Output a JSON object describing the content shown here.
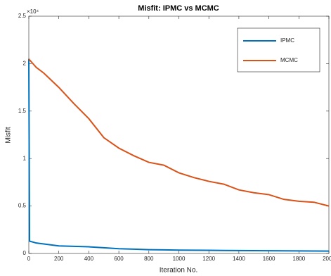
{
  "chart_data": {
    "type": "line",
    "title": "Misfit:  IPMC vs MCMC",
    "x_label": "Iteration No.",
    "y_label": "Misfit",
    "y_exponent_label": "×10⁴",
    "x": [
      0,
      5,
      50,
      100,
      200,
      300,
      400,
      500,
      600,
      700,
      800,
      900,
      1000,
      1100,
      1200,
      1300,
      1400,
      1500,
      1600,
      1700,
      1800,
      1900,
      2000
    ],
    "series": [
      {
        "name": "IPMC",
        "color": "#0072bd",
        "values": [
          2.05,
          0.13,
          0.11,
          0.1,
          0.08,
          0.075,
          0.07,
          0.06,
          0.05,
          0.045,
          0.04,
          0.038,
          0.035,
          0.034,
          0.033,
          0.032,
          0.031,
          0.03,
          0.029,
          0.028,
          0.027,
          0.026,
          0.025
        ]
      },
      {
        "name": "MCMC",
        "color": "#d95319",
        "values": [
          2.05,
          2.04,
          1.96,
          1.9,
          1.75,
          1.58,
          1.42,
          1.22,
          1.11,
          1.03,
          0.96,
          0.93,
          0.85,
          0.8,
          0.76,
          0.73,
          0.67,
          0.64,
          0.62,
          0.57,
          0.55,
          0.54,
          0.5
        ]
      }
    ],
    "xlim": [
      0,
      2000
    ],
    "xticks": [
      0,
      200,
      400,
      600,
      800,
      1000,
      1200,
      1400,
      1600,
      1800,
      2000
    ],
    "ylim": [
      0,
      2.5
    ],
    "yticks": [
      0,
      0.5,
      1,
      1.5,
      2,
      2.5
    ],
    "grid": false,
    "legend_position": "upper-right"
  }
}
